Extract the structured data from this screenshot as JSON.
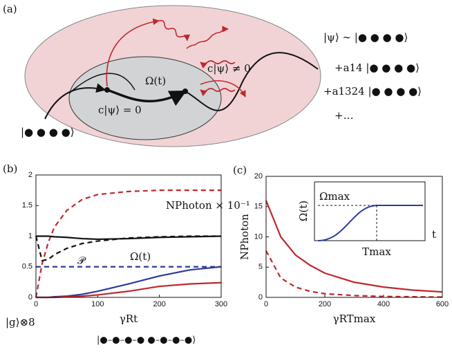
{
  "panel_a": {
    "label": "(a)",
    "omega": "Ω(t)",
    "dark": "c|ψ⟩ = 0",
    "bright": "c|ψ⟩ ≠ 0",
    "start": "|● ● ● ●⟩",
    "state": [
      "|ψ⟩ ∼ |● ● ● ●⟩",
      "+a14 |● ● ● ●⟩",
      "+a1324 |● ● ● ●⟩",
      "+…"
    ]
  },
  "chart_data": [
    {
      "type": "line",
      "label": "(b)",
      "xlabel": "γRt",
      "bottom_left": "|g⟩⊗8",
      "bottom_right": "|●–●–●–●  ●–●–●–●⟩",
      "x": [
        0,
        10,
        20,
        30,
        50,
        75,
        100,
        150,
        200,
        250,
        300
      ],
      "xlim": [
        0,
        300
      ],
      "xticks": [
        0,
        100,
        200,
        300
      ],
      "ylim": [
        0,
        2
      ],
      "yticks": [
        0,
        0.5,
        1,
        1.5,
        2
      ],
      "annotations": [
        "NPhoton × 10⁻¹",
        "𝒫",
        "Ω(t)"
      ],
      "series": [
        {
          "color": "#c0272d",
          "dash": true,
          "values": [
            0,
            0.55,
            0.9,
            1.15,
            1.42,
            1.6,
            1.68,
            1.73,
            1.75,
            1.75,
            1.75
          ]
        },
        {
          "color": "#111111",
          "dash": false,
          "values": [
            1,
            1,
            1,
            0.99,
            0.98,
            0.96,
            0.95,
            0.96,
            0.98,
            0.99,
            1
          ]
        },
        {
          "color": "#111111",
          "dash": true,
          "values": [
            1,
            0.6,
            0.62,
            0.7,
            0.8,
            0.88,
            0.92,
            0.97,
            0.99,
            1,
            1
          ]
        },
        {
          "color": "#2b3a9a",
          "dash": true,
          "values": [
            0.5,
            0.5,
            0.5,
            0.5,
            0.5,
            0.5,
            0.5,
            0.5,
            0.5,
            0.5,
            0.5
          ]
        },
        {
          "color": "#2b3a9a",
          "dash": false,
          "values": [
            0,
            0,
            0,
            0.01,
            0.02,
            0.05,
            0.1,
            0.22,
            0.35,
            0.45,
            0.5
          ]
        },
        {
          "color": "#c0272d",
          "dash": false,
          "values": [
            0,
            0,
            0,
            0,
            0.01,
            0.02,
            0.04,
            0.1,
            0.18,
            0.22,
            0.24
          ]
        }
      ]
    },
    {
      "type": "line",
      "label": "(c)",
      "xlabel": "γRTmax",
      "ylabel": "NPhoton",
      "x": [
        0,
        50,
        100,
        150,
        200,
        300,
        400,
        500,
        600
      ],
      "xlim": [
        0,
        600
      ],
      "xticks": [
        0,
        200,
        400,
        600
      ],
      "ylim": [
        0,
        20
      ],
      "yticks": [
        0,
        5,
        10,
        15,
        20
      ],
      "inset": {
        "ylabel": "Ω(t)",
        "top": "Ωmax",
        "xmark": "Tmax",
        "xlabel": "t"
      },
      "series": [
        {
          "color": "#c0272d",
          "dash": false,
          "values": [
            16,
            10,
            7,
            5.3,
            4,
            2.5,
            1.7,
            1.2,
            0.9
          ]
        },
        {
          "color": "#c0272d",
          "dash": true,
          "values": [
            7.7,
            3.2,
            1.7,
            1,
            0.6,
            0.3,
            0.15,
            0.1,
            0.05
          ]
        }
      ]
    }
  ]
}
